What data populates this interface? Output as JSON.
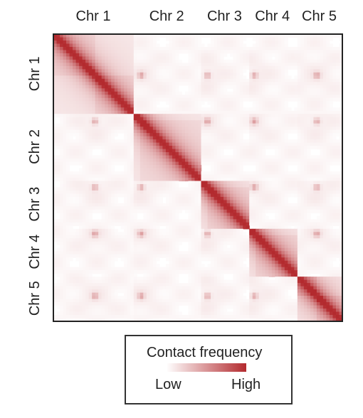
{
  "chart_data": {
    "type": "heatmap",
    "title": "",
    "xlabel": "",
    "ylabel": "",
    "categories": [
      "Chr 1",
      "Chr 2",
      "Chr 3",
      "Chr 4",
      "Chr 5"
    ],
    "chromosome_relative_sizes": [
      0.276,
      0.232,
      0.168,
      0.164,
      0.16
    ],
    "matrix_description": "symmetric Hi-C contact map with high frequency along the diagonal and low inter-chromosomal contact",
    "color_scale": {
      "low_color": "#ffffff",
      "high_color": "#b32a2e"
    },
    "legend": {
      "title": "Contact frequency",
      "low_label": "Low",
      "high_label": "High",
      "placement": "bottom"
    },
    "grid": false
  }
}
